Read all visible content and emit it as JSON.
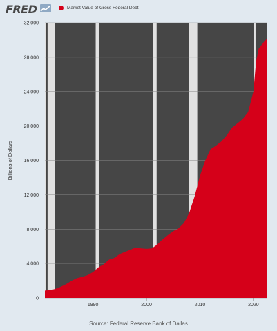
{
  "header": {
    "logo_text": "FRED",
    "logo_icon": "trend-line-icon"
  },
  "source": "Source: Federal Reserve Bank of Dallas",
  "colors": {
    "series": "#d50019",
    "plot_background": "#464646",
    "recession_shading": "#e1e1e1",
    "gridline": "#888888",
    "page_background": "#e1e9f0"
  },
  "chart_data": {
    "type": "area",
    "title": "",
    "ylabel": "Billions of Dollars",
    "xlabel": "",
    "xlim": [
      1981,
      2022.6
    ],
    "ylim": [
      0,
      32000
    ],
    "x_ticks": [
      1990,
      2000,
      2010,
      2020
    ],
    "y_ticks": [
      0,
      4000,
      8000,
      12000,
      16000,
      20000,
      24000,
      28000,
      32000
    ],
    "y_tick_labels": [
      "0",
      "4,000",
      "8,000",
      "12,000",
      "16,000",
      "20,000",
      "24,000",
      "28,000",
      "32,000"
    ],
    "grid": true,
    "legend_position": "top",
    "recessions": [
      [
        1981.0,
        1981.1
      ],
      [
        1981.5,
        1982.9
      ],
      [
        1990.5,
        1991.2
      ],
      [
        2001.2,
        2001.9
      ],
      [
        2007.9,
        2009.5
      ],
      [
        2020.1,
        2020.4
      ]
    ],
    "series": [
      {
        "name": "Market Value of Gross Federal Debt",
        "x": [
          1981.0,
          1982.0,
          1983.0,
          1984.0,
          1985.0,
          1986.0,
          1987.0,
          1988.0,
          1989.0,
          1990.0,
          1991.0,
          1992.0,
          1993.0,
          1994.0,
          1995.0,
          1996.0,
          1997.0,
          1998.0,
          1999.0,
          2000.0,
          2001.0,
          2002.0,
          2003.0,
          2004.0,
          2005.0,
          2006.0,
          2007.0,
          2008.0,
          2009.0,
          2010.0,
          2011.0,
          2012.0,
          2013.0,
          2014.0,
          2015.0,
          2016.0,
          2017.0,
          2018.0,
          2019.0,
          2020.0,
          2020.5,
          2021.0,
          2022.0,
          2022.6
        ],
        "values": [
          850,
          900,
          1050,
          1300,
          1600,
          2000,
          2300,
          2450,
          2650,
          3000,
          3550,
          3900,
          4450,
          4650,
          5100,
          5350,
          5600,
          5850,
          5750,
          5700,
          5750,
          6200,
          6800,
          7300,
          7750,
          8100,
          8700,
          9900,
          11800,
          14200,
          16000,
          17300,
          17700,
          18200,
          18900,
          19800,
          20300,
          20800,
          21600,
          24000,
          27500,
          29000,
          29800,
          30200
        ]
      }
    ]
  }
}
